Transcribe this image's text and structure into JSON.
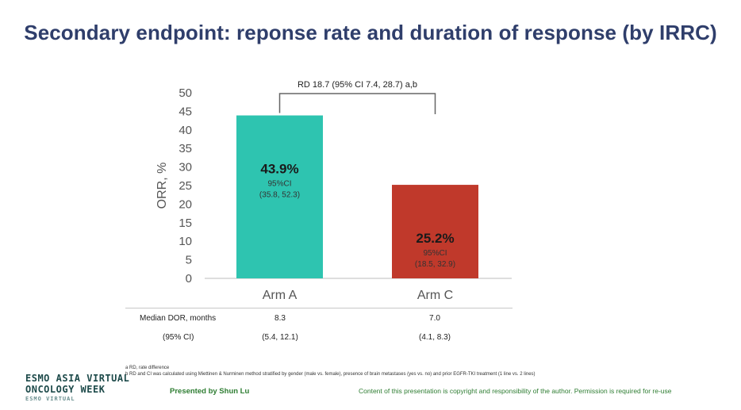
{
  "title": "Secondary endpoint: reponse rate and duration of response (by IRRC)",
  "colors": {
    "arm_a": "#2ec4b0",
    "arm_c": "#c0392b",
    "title": "#2f3e6b",
    "footer_text": "#2e7d32"
  },
  "chart_data": {
    "type": "bar",
    "categories": [
      "Arm A",
      "Arm C"
    ],
    "values": [
      43.9,
      25.2
    ],
    "value_labels": [
      "43.9%",
      "25.2%"
    ],
    "ci_title": "95%CI",
    "ci_labels": [
      "(35.8, 52.3)",
      "(18.5, 32.9)"
    ],
    "ylabel": "ORR, %",
    "xlabel": "",
    "ylim": [
      0,
      50
    ],
    "yticks": [
      0,
      5,
      10,
      15,
      20,
      25,
      30,
      35,
      40,
      45,
      50
    ],
    "grid": false,
    "annotation": "RD 18.7 (95% CI 7.4, 28.7) a,b"
  },
  "table": {
    "row1": {
      "label": "Median DOR, months",
      "values": [
        "8.3",
        "7.0"
      ]
    },
    "row2": {
      "label": "(95% CI)",
      "values": [
        "(5.4, 12.1)",
        "(4.1, 8.3)"
      ]
    }
  },
  "footnotes": [
    "a RD, rate difference",
    "b RD and CI was calculated using Miettinen & Nurminen method stratified by gender (male vs. female), presence of brain metastases (yes vs. no) and prior EGFR-TKI treatment (1 line vs. 2 lines)"
  ],
  "footer": {
    "logo_line1": "ESMO ASIA VIRTUAL",
    "logo_line2": "ONCOLOGY WEEK",
    "logo_line3": "ESMO VIRTUAL",
    "presenter": "Presented by Shun Lu",
    "copyright": "Content of this presentation is copyright and responsibility of the author. Permission is required for re-use"
  }
}
